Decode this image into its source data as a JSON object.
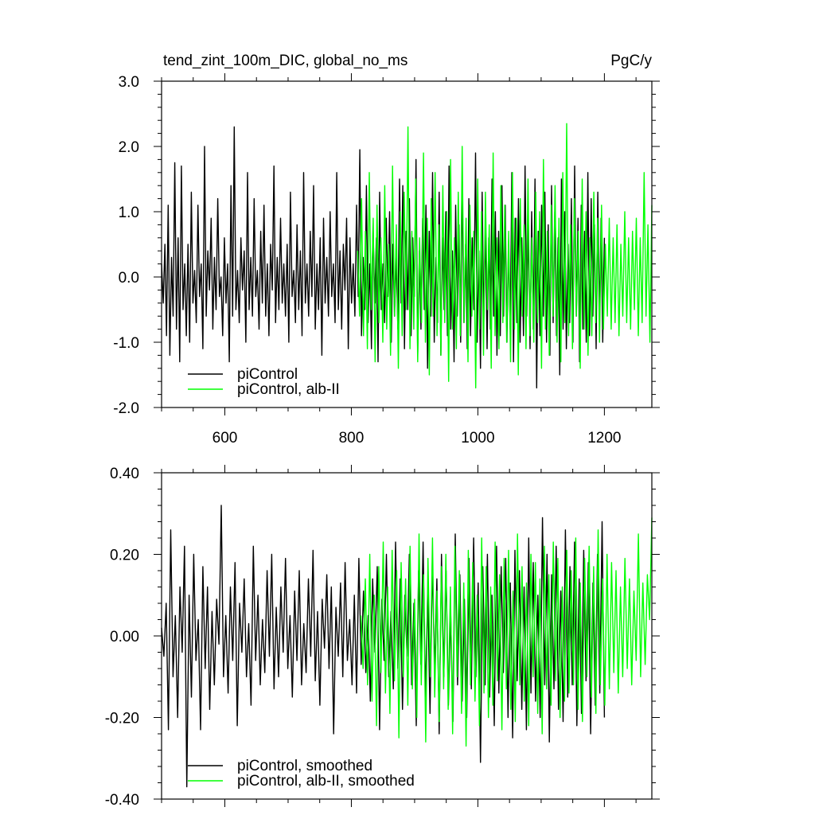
{
  "chart_data": [
    {
      "type": "line",
      "title": "tend_zint_100m_DIC, global_no_ms",
      "units": "PgC/y",
      "xlim": [
        500,
        1275
      ],
      "ylim": [
        -2.0,
        3.0
      ],
      "x_ticks": [
        600,
        800,
        1000,
        1200
      ],
      "x_tick_labels": [
        "600",
        "800",
        "1000",
        "1200"
      ],
      "y_ticks": [
        -2.0,
        -1.0,
        0.0,
        1.0,
        2.0,
        3.0
      ],
      "y_tick_labels": [
        "-2.0",
        "-1.0",
        "0.0",
        "1.0",
        "2.0",
        "3.0"
      ],
      "legend_position": "bottom-left",
      "series": [
        {
          "name": "piControl",
          "color": "#000000",
          "x_start": 500,
          "x_end": 1200,
          "values": [
            0.2,
            -0.4,
            0.5,
            -0.9,
            1.1,
            -1.2,
            0.3,
            -0.6,
            1.75,
            -0.8,
            0.6,
            -1.3,
            1.7,
            -0.5,
            0.2,
            -0.9,
            0.5,
            -1.0,
            1.3,
            -0.4,
            0.1,
            -0.7,
            1.1,
            -0.3,
            0.2,
            -1.1,
            2.0,
            -0.6,
            0.4,
            -0.2,
            0.9,
            -0.8,
            0.3,
            -0.5,
            1.2,
            -0.3,
            0.0,
            -0.9,
            0.6,
            -0.4,
            0.2,
            -1.3,
            1.4,
            -0.6,
            2.3,
            -0.5,
            0.1,
            -0.7,
            0.6,
            -0.2,
            0.4,
            -1.0,
            1.6,
            -0.5,
            0.3,
            -0.6,
            1.2,
            -0.3,
            0.1,
            -0.8,
            0.7,
            -0.4,
            1.1,
            -0.6,
            0.2,
            -0.9,
            0.5,
            -0.2,
            1.7,
            -0.7,
            0.3,
            -0.5,
            0.9,
            -0.4,
            0.2,
            -0.6,
            0.5,
            -1.0,
            1.3,
            -0.3,
            0.1,
            -0.7,
            0.8,
            -0.5,
            0.4,
            -0.9,
            1.6,
            -0.4,
            0.2,
            -0.6,
            0.7,
            -0.3,
            1.4,
            -0.8,
            0.2,
            -0.5,
            0.6,
            -1.2,
            0.9,
            -0.4,
            0.3,
            -0.6,
            1.0,
            -0.3,
            0.2,
            -0.7,
            1.6,
            -0.5,
            0.4,
            -0.8,
            0.5,
            -0.2,
            0.9,
            -1.1,
            0.6,
            -0.4,
            0.2,
            -0.6,
            1.1,
            -0.3,
            1.95,
            -0.9,
            0.3,
            -0.5,
            1.4,
            -0.7,
            0.2,
            -1.1,
            0.8,
            -0.4,
            0.6,
            -1.3,
            1.3,
            -0.5,
            0.2,
            -0.7,
            0.9,
            -0.3,
            1.0,
            -1.0,
            0.5,
            -0.6,
            0.3,
            -0.8,
            1.5,
            -0.4,
            1.4,
            -1.1,
            0.7,
            -0.5,
            1.2,
            -0.9,
            0.6,
            -0.3,
            1.8,
            -1.2,
            0.4,
            -0.8,
            0.9,
            -0.5,
            1.1,
            -1.4,
            0.7,
            -0.6,
            1.6,
            -1.0,
            0.3,
            -0.7,
            1.3,
            -1.2,
            0.6,
            -0.5,
            1.0,
            -0.9,
            1.7,
            -0.8,
            0.4,
            -1.3,
            1.1,
            -0.6,
            0.8,
            -1.0,
            1.5,
            -0.7,
            0.5,
            -1.1,
            1.2,
            -0.9,
            0.6,
            -0.5,
            1.9,
            -1.0,
            0.4,
            -1.4,
            1.3,
            -0.7,
            0.8,
            -1.1,
            0.6,
            -0.8,
            1.5,
            -0.6,
            1.0,
            -1.2,
            0.7,
            -0.9,
            1.4,
            -0.6,
            1.1,
            -1.0,
            0.5,
            -0.8,
            1.6,
            -1.3,
            0.9,
            -0.7,
            1.2,
            -1.0,
            0.6,
            -0.9,
            1.7,
            -0.6,
            0.8,
            -1.1,
            1.0,
            -0.8,
            1.5,
            -1.7,
            0.7,
            -0.9,
            1.1,
            -0.6,
            1.3,
            -1.0,
            0.8,
            -1.2,
            1.4,
            -0.7,
            1.0,
            -0.9,
            0.6,
            -1.5,
            1.5,
            -0.8,
            1.0,
            -1.1,
            0.5,
            -0.7,
            1.2,
            -1.0,
            1.7,
            -0.6,
            0.9,
            -1.3,
            1.1,
            -0.8,
            0.7,
            -1.0,
            1.6,
            -0.9,
            1.2,
            -0.6,
            0.8,
            -1.1,
            1.3,
            -0.7,
            0.9,
            -1.0,
            0.6
          ]
        },
        {
          "name": "piControl, alb-II",
          "color": "#00ff00",
          "x_start": 810,
          "x_end": 1275,
          "values": [
            0.4,
            -0.6,
            1.2,
            -0.9,
            0.7,
            -1.1,
            1.6,
            -0.5,
            0.9,
            -1.3,
            1.1,
            -0.7,
            0.6,
            -1.0,
            1.4,
            -0.8,
            0.5,
            -1.2,
            1.7,
            -0.6,
            0.8,
            -1.4,
            1.0,
            -0.9,
            1.3,
            -0.5,
            2.3,
            -1.1,
            0.7,
            -0.8,
            1.5,
            -1.3,
            0.6,
            -0.7,
            1.9,
            -1.0,
            0.9,
            -1.5,
            1.2,
            -0.6,
            1.6,
            -0.9,
            0.8,
            -1.2,
            1.4,
            -0.7,
            1.0,
            -1.6,
            1.8,
            -0.8,
            0.6,
            -1.1,
            1.3,
            -0.9,
            2.0,
            -0.7,
            0.9,
            -1.3,
            1.1,
            -0.6,
            0.7,
            -1.7,
            1.5,
            -0.8,
            1.0,
            -1.2,
            1.3,
            -0.5,
            0.8,
            -1.4,
            1.9,
            -0.9,
            0.6,
            -1.1,
            1.4,
            -0.7,
            1.1,
            -1.0,
            0.7,
            -1.3,
            1.6,
            -0.8,
            0.9,
            -1.5,
            1.2,
            -0.6,
            0.8,
            -1.1,
            1.5,
            -0.9,
            0.6,
            -1.0,
            1.3,
            -0.7,
            1.0,
            -1.4,
            1.8,
            -0.8,
            0.7,
            -1.2,
            1.1,
            -0.6,
            1.4,
            -1.0,
            0.9,
            -1.3,
            1.6,
            -0.7,
            2.35,
            -0.9,
            0.8,
            -1.1,
            1.2,
            -0.6,
            0.7,
            -1.4,
            1.5,
            -0.8,
            1.0,
            -1.2,
            0.6,
            -0.9,
            1.3,
            -0.7,
            0.9,
            -1.0,
            1.1,
            -0.8,
            0.5,
            -0.6,
            0.9,
            -0.8,
            0.6,
            -0.7,
            0.8,
            -0.9,
            0.5,
            -0.6,
            1.0,
            -0.7,
            0.6,
            -0.8,
            0.7,
            -0.5,
            0.9,
            -0.9,
            0.6,
            -0.7,
            1.6,
            -0.6,
            0.8,
            -1.0,
            1.1
          ]
        }
      ]
    },
    {
      "type": "line",
      "xlim": [
        500,
        1275
      ],
      "ylim": [
        -0.4,
        0.4
      ],
      "y_ticks": [
        -0.4,
        -0.2,
        0.0,
        0.2,
        0.4
      ],
      "y_tick_labels": [
        "-0.40",
        "-0.20",
        "0.00",
        "0.20",
        "0.40"
      ],
      "x_ticks": [
        600,
        800,
        1000,
        1200
      ],
      "legend_position": "bottom-left",
      "series": [
        {
          "name": "piControl, smoothed",
          "color": "#000000",
          "x_start": 500,
          "x_end": 1200,
          "values": [
            0.02,
            -0.05,
            0.08,
            -0.23,
            0.26,
            -0.1,
            0.05,
            -0.2,
            0.12,
            -0.04,
            0.22,
            -0.37,
            0.1,
            -0.15,
            0.2,
            -0.06,
            0.04,
            -0.23,
            0.17,
            -0.08,
            0.12,
            -0.18,
            0.06,
            -0.12,
            0.09,
            -0.02,
            0.32,
            -0.1,
            0.05,
            -0.14,
            0.12,
            -0.06,
            0.18,
            -0.22,
            0.08,
            -0.04,
            0.14,
            -0.1,
            0.03,
            -0.17,
            0.22,
            -0.06,
            0.1,
            -0.12,
            0.04,
            -0.09,
            0.16,
            -0.05,
            0.2,
            -0.13,
            0.07,
            -0.1,
            0.12,
            -0.04,
            0.19,
            -0.08,
            0.05,
            -0.15,
            0.11,
            -0.06,
            0.16,
            -0.12,
            0.03,
            -0.09,
            0.14,
            -0.05,
            0.21,
            -0.11,
            0.06,
            -0.17,
            0.09,
            -0.03,
            0.15,
            -0.08,
            0.12,
            -0.24,
            0.07,
            -0.05,
            0.13,
            -0.1,
            0.18,
            -0.06,
            0.04,
            -0.12,
            0.1,
            -0.14,
            0.19,
            -0.07,
            0.11,
            -0.09,
            0.05,
            -0.16,
            0.14,
            -0.04,
            0.17,
            -0.23,
            0.09,
            -0.06,
            0.2,
            -0.1,
            0.06,
            -0.13,
            0.23,
            -0.08,
            0.14,
            -0.18,
            0.1,
            -0.05,
            0.2,
            -0.12,
            0.08,
            -0.22,
            0.16,
            -0.07,
            0.23,
            -0.15,
            0.11,
            -0.19,
            0.18,
            -0.09,
            0.14,
            -0.24,
            0.2,
            -0.1,
            0.16,
            -0.17,
            0.06,
            -0.21,
            0.25,
            -0.12,
            0.15,
            -0.16,
            0.09,
            -0.2,
            0.19,
            -0.13,
            0.24,
            -0.1,
            0.13,
            -0.31,
            0.17,
            -0.12,
            0.2,
            -0.15,
            0.1,
            -0.22,
            0.22,
            -0.14,
            0.17,
            -0.09,
            0.19,
            -0.2,
            0.13,
            -0.25,
            0.21,
            -0.11,
            0.16,
            -0.18,
            0.12,
            -0.23,
            0.24,
            -0.14,
            0.18,
            -0.16,
            0.1,
            -0.2,
            0.29,
            -0.12,
            0.2,
            -0.26,
            0.15,
            -0.13,
            0.22,
            -0.18,
            0.11,
            -0.21,
            0.26,
            -0.15,
            0.17,
            -0.12,
            0.23,
            -0.22,
            0.14,
            -0.19,
            0.21,
            -0.11,
            0.18,
            -0.24,
            0.13,
            -0.17,
            0.2,
            -0.14,
            0.28,
            -0.2
          ]
        },
        {
          "name": "piControl, alb-II, smoothed",
          "color": "#00ff00",
          "x_start": 815,
          "x_end": 1275,
          "values": [
            0.05,
            -0.08,
            0.14,
            -0.12,
            0.2,
            -0.16,
            0.1,
            -0.22,
            0.17,
            -0.09,
            0.23,
            -0.14,
            0.12,
            -0.19,
            0.21,
            -0.11,
            0.16,
            -0.25,
            0.18,
            -0.1,
            0.14,
            -0.17,
            0.22,
            -0.13,
            0.09,
            -0.2,
            0.25,
            -0.12,
            0.15,
            -0.26,
            0.19,
            -0.1,
            0.24,
            -0.15,
            0.11,
            -0.21,
            0.17,
            -0.13,
            0.2,
            -0.18,
            0.12,
            -0.24,
            0.22,
            -0.1,
            0.16,
            -0.19,
            0.13,
            -0.27,
            0.21,
            -0.12,
            0.18,
            -0.16,
            0.1,
            -0.22,
            0.24,
            -0.14,
            0.17,
            -0.2,
            0.12,
            -0.17,
            0.23,
            -0.11,
            0.15,
            -0.23,
            0.19,
            -0.13,
            0.21,
            -0.18,
            0.11,
            -0.21,
            0.25,
            -0.12,
            0.17,
            -0.16,
            0.13,
            -0.22,
            0.2,
            -0.1,
            0.18,
            -0.19,
            0.14,
            -0.24,
            0.22,
            -0.13,
            0.15,
            -0.17,
            0.23,
            -0.11,
            0.19,
            -0.2,
            0.12,
            -0.16,
            0.21,
            -0.14,
            0.16,
            -0.12,
            0.24,
            -0.18,
            0.13,
            -0.21,
            0.19,
            -0.1,
            0.22,
            -0.15,
            0.17,
            -0.19,
            0.26,
            -0.12,
            0.14,
            -0.17,
            0.2,
            -0.13,
            0.18,
            -0.09,
            0.16,
            -0.14,
            0.12,
            -0.1,
            0.19,
            -0.08,
            0.14,
            -0.12,
            0.11,
            -0.06,
            0.25,
            -0.1,
            0.13,
            -0.07,
            0.15,
            0.04,
            0.29
          ]
        }
      ]
    }
  ]
}
